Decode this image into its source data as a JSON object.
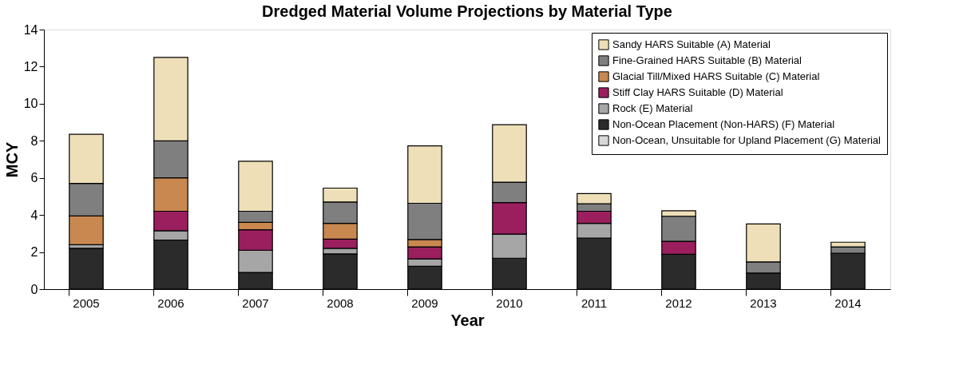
{
  "chart_data": {
    "type": "bar",
    "stacked": true,
    "title": "Dredged Material Volume Projections by Material Type",
    "xlabel": "Year",
    "ylabel": "MCY",
    "categories": [
      "2005",
      "2006",
      "2007",
      "2008",
      "2009",
      "2010",
      "2011",
      "2012",
      "2013",
      "2014"
    ],
    "series": [
      {
        "name": "Non-Ocean, Unsuitable for Upland Placement (G) Material",
        "color": "#d8d8d8",
        "values": [
          null,
          null,
          null,
          null,
          null,
          null,
          null,
          null,
          null,
          null
        ]
      },
      {
        "name": "Non-Ocean Placement (Non-HARS) (F) Material",
        "color": "#2b2b2b",
        "values": [
          2.2,
          2.65,
          0.9,
          1.9,
          1.23,
          1.67,
          2.75,
          1.88,
          0.87,
          1.93
        ]
      },
      {
        "name": "Rock (E) Material",
        "color": "#a6a6a6",
        "values": [
          0.2,
          0.5,
          1.2,
          0.3,
          0.4,
          1.3,
          0.8,
          null,
          null,
          null
        ]
      },
      {
        "name": "Stiff Clay HARS Suitable (D) Material",
        "color": "#9b1f5f",
        "values": [
          null,
          1.05,
          1.1,
          0.5,
          0.65,
          1.7,
          0.65,
          0.7,
          null,
          null
        ]
      },
      {
        "name": "Glacial Till/Mixed HARS Suitable (C) Material",
        "color": "#c88850",
        "values": [
          1.55,
          1.8,
          0.4,
          0.85,
          0.4,
          null,
          null,
          null,
          null,
          null
        ]
      },
      {
        "name": "Fine-Grained HARS Suitable (B) Material",
        "color": "#7f7f7f",
        "values": [
          1.75,
          2.0,
          0.6,
          1.15,
          1.95,
          1.1,
          0.4,
          1.35,
          0.6,
          0.35
        ]
      },
      {
        "name": "Sandy HARS Suitable (A) Material",
        "color": "#eedfb8",
        "values": [
          2.65,
          4.5,
          2.7,
          0.75,
          3.1,
          3.1,
          0.55,
          0.3,
          2.05,
          0.25
        ]
      }
    ],
    "ylim": [
      0,
      14
    ],
    "yticks": [
      0,
      2,
      4,
      6,
      8,
      10,
      12,
      14
    ],
    "grid": false,
    "legend": "top right"
  }
}
